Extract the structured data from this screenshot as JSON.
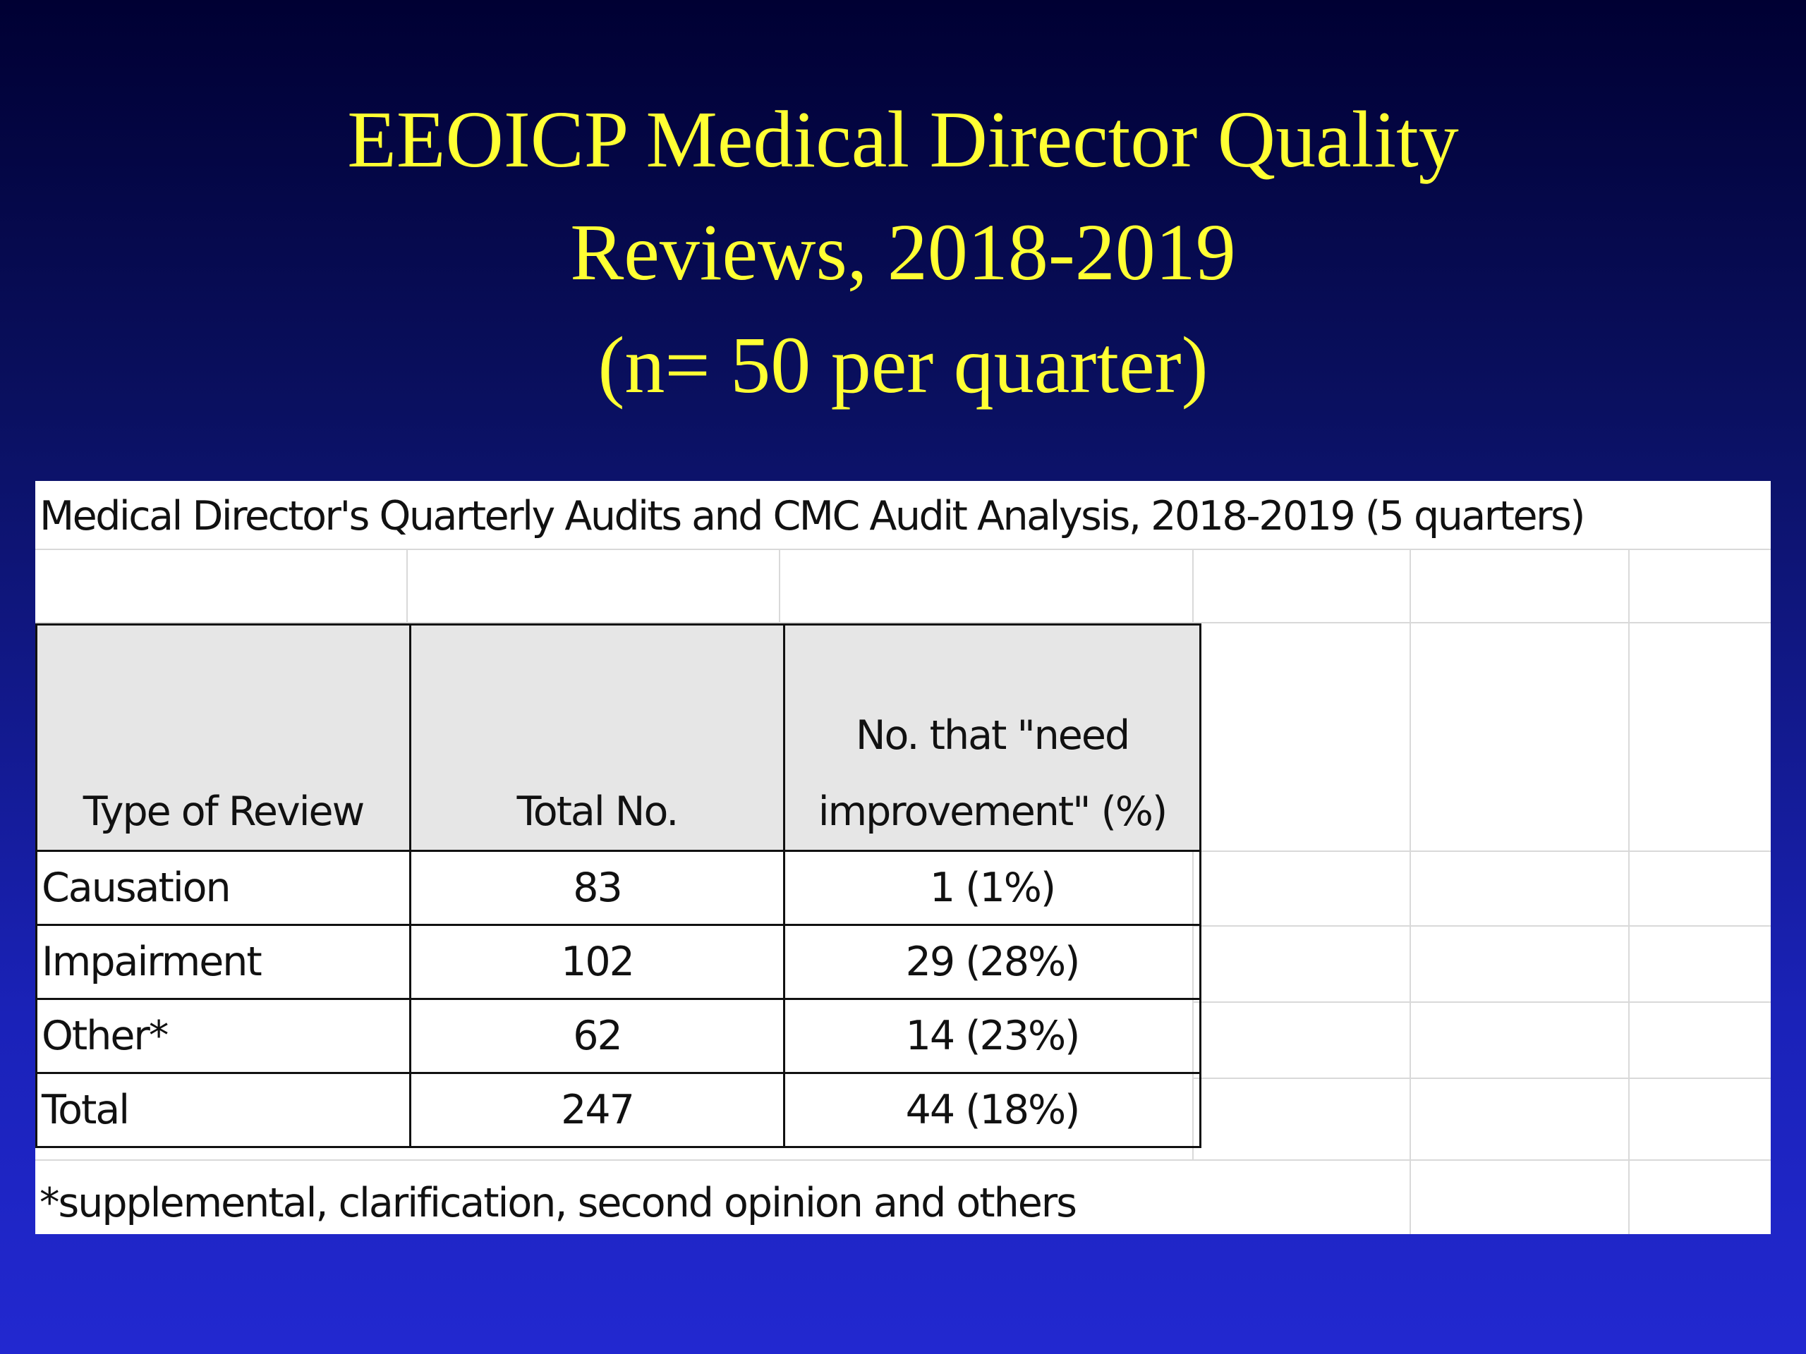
{
  "slide": {
    "title_lines": [
      "EEOICP Medical Director Quality",
      "Reviews, 2018-2019",
      "(n= 50 per quarter)"
    ],
    "title_color": "#ffff33"
  },
  "sheet": {
    "title": "Medical Director's Quarterly Audits and CMC Audit Analysis, 2018-2019 (5 quarters)",
    "table": {
      "headers": {
        "type": "Type of Review",
        "total": "Total No.",
        "need_line1": "No. that \"need",
        "need_line2": "improvement\" (%)"
      },
      "rows": [
        {
          "type": "Causation",
          "total": "83",
          "need": "1 (1%)"
        },
        {
          "type": "Impairment",
          "total": "102",
          "need": "29 (28%)"
        },
        {
          "type": "Other*",
          "total": "62",
          "need": "14 (23%)"
        },
        {
          "type": "Total",
          "total": "247",
          "need": "44 (18%)"
        }
      ]
    },
    "footnote": "*supplemental, clarification, second opinion and others"
  }
}
